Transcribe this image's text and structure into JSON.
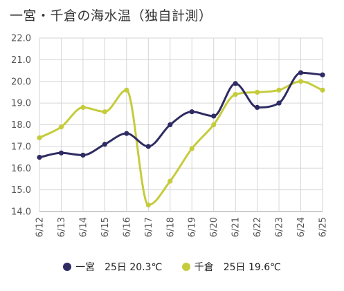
{
  "chart_data": {
    "type": "line",
    "title": "一宮・千倉の海水温（独自計測）",
    "categories": [
      "6/12",
      "6/13",
      "6/14",
      "6/15",
      "6/16",
      "6/17",
      "6/18",
      "6/19",
      "6/20",
      "6/21",
      "6/22",
      "6/23",
      "6/24",
      "6/25"
    ],
    "ylim": [
      14.0,
      22.0
    ],
    "yticks": [
      "14.0",
      "15.0",
      "16.0",
      "17.0",
      "18.0",
      "19.0",
      "20.0",
      "21.0",
      "22.0"
    ],
    "grid": true,
    "legend_position": "bottom",
    "series": [
      {
        "name": "一宮",
        "latest": "25日 20.3℃",
        "color": "#2e2c62",
        "values": [
          16.5,
          16.7,
          16.6,
          17.1,
          17.6,
          17.0,
          18.0,
          18.6,
          18.4,
          19.9,
          18.8,
          19.0,
          20.4,
          20.3
        ]
      },
      {
        "name": "千倉",
        "latest": "25日 19.6℃",
        "color": "#c5cc3c",
        "values": [
          17.4,
          17.9,
          18.8,
          18.6,
          19.6,
          14.3,
          15.4,
          16.9,
          18.0,
          19.4,
          19.5,
          19.6,
          20.0,
          19.6
        ]
      }
    ]
  }
}
